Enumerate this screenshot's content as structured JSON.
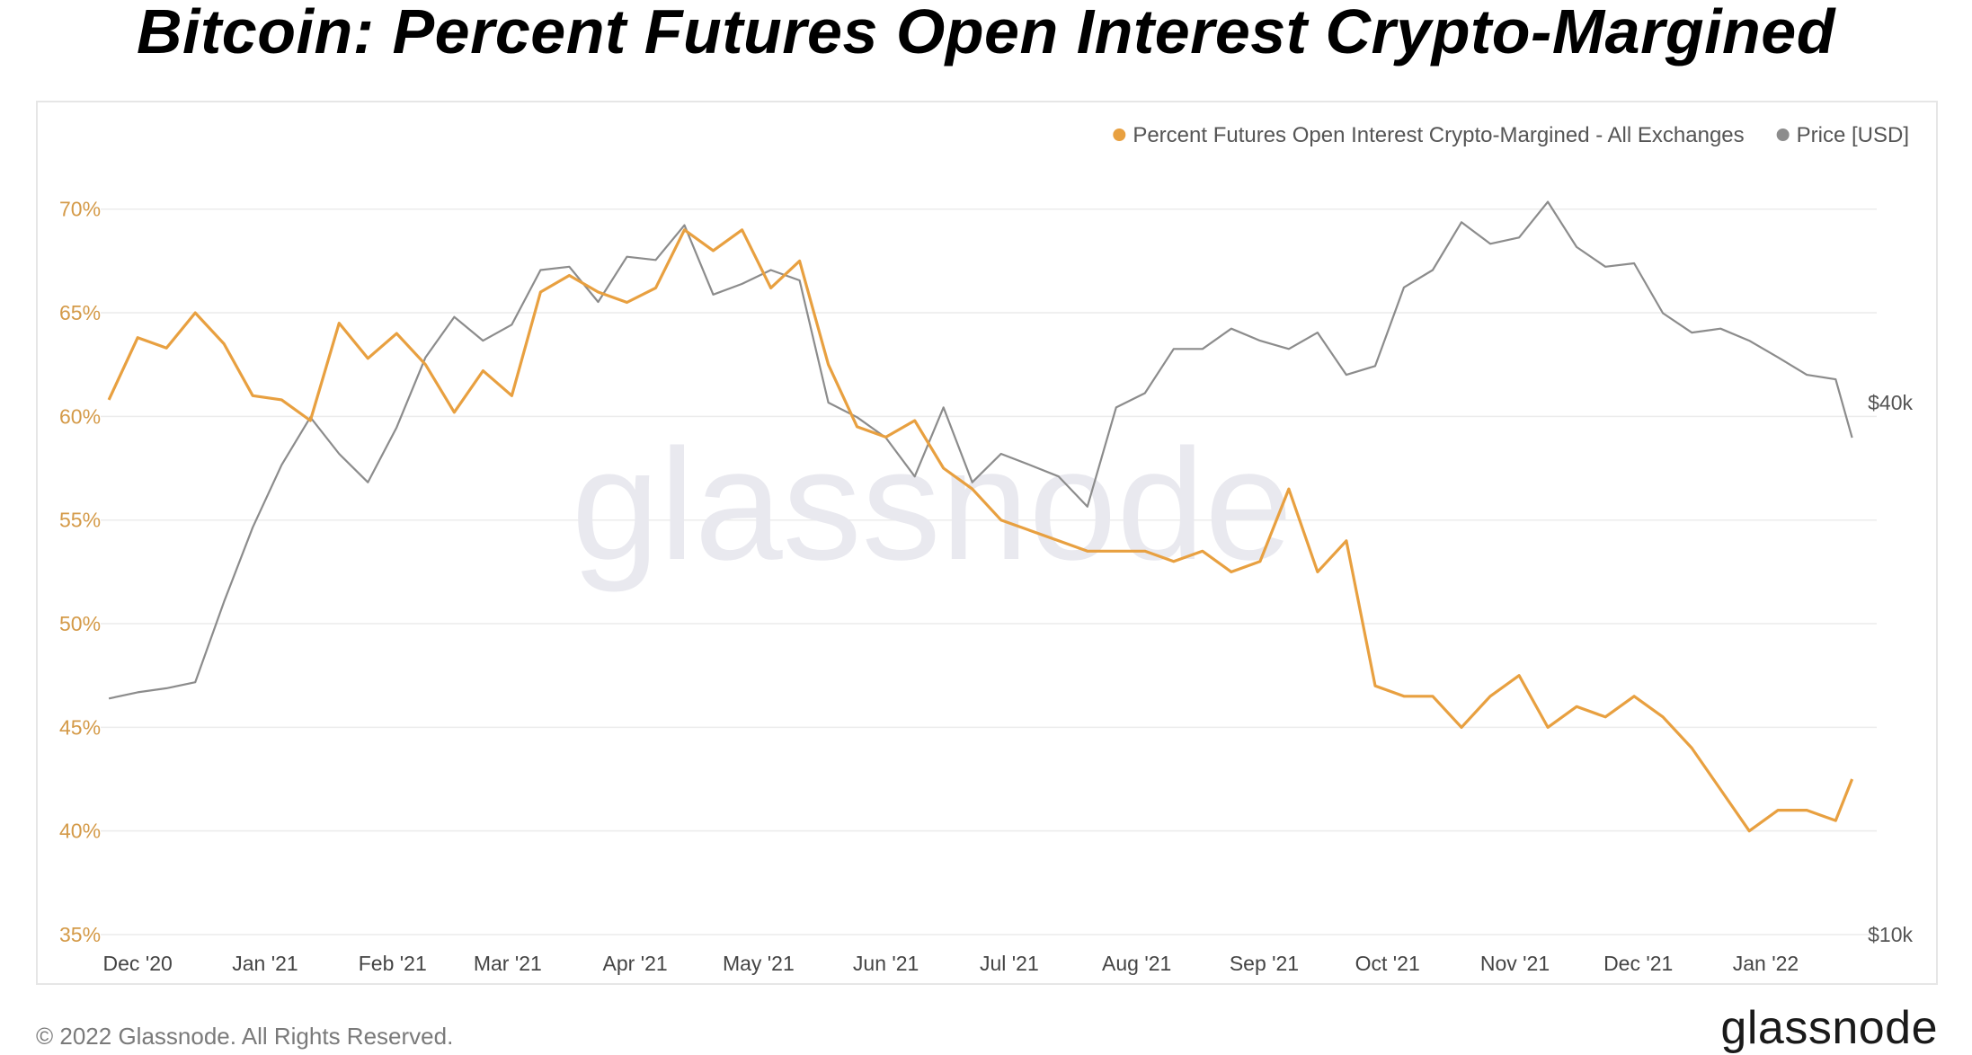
{
  "header": {
    "title": "Bitcoin: Percent Futures Open Interest Crypto-Margined"
  },
  "footer": {
    "copyright": "© 2022 Glassnode. All Rights Reserved.",
    "logo": "glassnode"
  },
  "watermark": {
    "text": "glassnode"
  },
  "chart_data": {
    "type": "line",
    "title": "Bitcoin: Percent Futures Open Interest Crypto-Margined",
    "legend_position": "top-right",
    "grid": true,
    "x_ticks": [
      "Dec '20",
      "Jan '21",
      "Feb '21",
      "Mar '21",
      "Apr '21",
      "May '21",
      "Jun '21",
      "Jul '21",
      "Aug '21",
      "Sep '21",
      "Oct '21",
      "Nov '21",
      "Dec '21",
      "Jan '22"
    ],
    "y_left": {
      "ticks": [
        "35%",
        "40%",
        "45%",
        "50%",
        "55%",
        "60%",
        "65%",
        "70%"
      ],
      "range": [
        35,
        73.5
      ],
      "unit": "%"
    },
    "y_right": {
      "ticks": [
        "$10k",
        "$40k"
      ],
      "scale": "log",
      "range_usd": [
        10000,
        80000
      ]
    },
    "colors": {
      "percent": "#E8A040",
      "price": "#8C8C8C",
      "grid": "#ececec",
      "left_tick": "#D49A48",
      "right_tick": "#555555"
    },
    "series": [
      {
        "name": "Percent Futures Open Interest Crypto-Margined - All Exchanges",
        "axis": "left",
        "x": [
          "2020-11-24",
          "2020-12-01",
          "2020-12-08",
          "2020-12-15",
          "2020-12-22",
          "2020-12-29",
          "2021-01-05",
          "2021-01-12",
          "2021-01-19",
          "2021-01-26",
          "2021-02-02",
          "2021-02-09",
          "2021-02-16",
          "2021-02-23",
          "2021-03-02",
          "2021-03-09",
          "2021-03-16",
          "2021-03-23",
          "2021-03-30",
          "2021-04-06",
          "2021-04-13",
          "2021-04-20",
          "2021-04-27",
          "2021-05-04",
          "2021-05-11",
          "2021-05-18",
          "2021-05-25",
          "2021-06-01",
          "2021-06-08",
          "2021-06-15",
          "2021-06-22",
          "2021-06-29",
          "2021-07-06",
          "2021-07-13",
          "2021-07-20",
          "2021-07-27",
          "2021-08-03",
          "2021-08-10",
          "2021-08-17",
          "2021-08-24",
          "2021-08-31",
          "2021-09-07",
          "2021-09-14",
          "2021-09-21",
          "2021-09-28",
          "2021-10-05",
          "2021-10-12",
          "2021-10-19",
          "2021-10-26",
          "2021-11-02",
          "2021-11-09",
          "2021-11-16",
          "2021-11-23",
          "2021-11-30",
          "2021-12-07",
          "2021-12-14",
          "2021-12-21",
          "2021-12-28",
          "2022-01-04",
          "2022-01-11",
          "2022-01-18",
          "2022-01-22"
        ],
        "values": [
          60.8,
          63.8,
          63.3,
          65.0,
          63.5,
          61.0,
          60.8,
          59.8,
          64.5,
          62.8,
          64.0,
          62.5,
          60.2,
          62.2,
          61.0,
          66.0,
          66.8,
          66.0,
          65.5,
          66.2,
          69.0,
          68.0,
          69.0,
          66.2,
          67.5,
          62.5,
          59.5,
          59.0,
          59.8,
          57.5,
          56.5,
          55.0,
          54.5,
          54.0,
          53.5,
          53.5,
          53.5,
          53.0,
          53.5,
          52.5,
          53.0,
          56.5,
          52.5,
          54.0,
          47.0,
          46.5,
          46.5,
          45.0,
          46.5,
          47.5,
          45.0,
          46.0,
          45.5,
          46.5,
          45.5,
          44.0,
          42.0,
          40.0,
          41.0,
          41.0,
          40.5,
          42.5
        ]
      },
      {
        "name": "Price [USD]",
        "axis": "right",
        "x": [
          "2020-11-24",
          "2020-12-01",
          "2020-12-08",
          "2020-12-15",
          "2020-12-22",
          "2020-12-29",
          "2021-01-05",
          "2021-01-12",
          "2021-01-19",
          "2021-01-26",
          "2021-02-02",
          "2021-02-09",
          "2021-02-16",
          "2021-02-23",
          "2021-03-02",
          "2021-03-09",
          "2021-03-16",
          "2021-03-23",
          "2021-03-30",
          "2021-04-06",
          "2021-04-13",
          "2021-04-20",
          "2021-04-27",
          "2021-05-04",
          "2021-05-11",
          "2021-05-18",
          "2021-05-25",
          "2021-06-01",
          "2021-06-08",
          "2021-06-15",
          "2021-06-22",
          "2021-06-29",
          "2021-07-06",
          "2021-07-13",
          "2021-07-20",
          "2021-07-27",
          "2021-08-03",
          "2021-08-10",
          "2021-08-17",
          "2021-08-24",
          "2021-08-31",
          "2021-09-07",
          "2021-09-14",
          "2021-09-21",
          "2021-09-28",
          "2021-10-05",
          "2021-10-12",
          "2021-10-19",
          "2021-10-26",
          "2021-11-02",
          "2021-11-09",
          "2021-11-16",
          "2021-11-23",
          "2021-11-30",
          "2021-12-07",
          "2021-12-14",
          "2021-12-21",
          "2021-12-28",
          "2022-01-04",
          "2022-01-11",
          "2022-01-18",
          "2022-01-22"
        ],
        "values": [
          18500,
          18800,
          19000,
          19300,
          23800,
          28900,
          34000,
          38500,
          35000,
          32500,
          37500,
          45000,
          50000,
          47000,
          49000,
          56500,
          57000,
          52000,
          58500,
          58000,
          63500,
          53000,
          54500,
          56500,
          55000,
          40000,
          38500,
          36500,
          33000,
          39500,
          32500,
          35000,
          34000,
          33000,
          30500,
          39500,
          41000,
          46000,
          46000,
          48500,
          47000,
          46000,
          48000,
          43000,
          44000,
          54000,
          56500,
          64000,
          60500,
          61500,
          67500,
          60000,
          57000,
          57500,
          50500,
          48000,
          48500,
          47000,
          45000,
          43000,
          42500,
          36500
        ]
      }
    ]
  }
}
